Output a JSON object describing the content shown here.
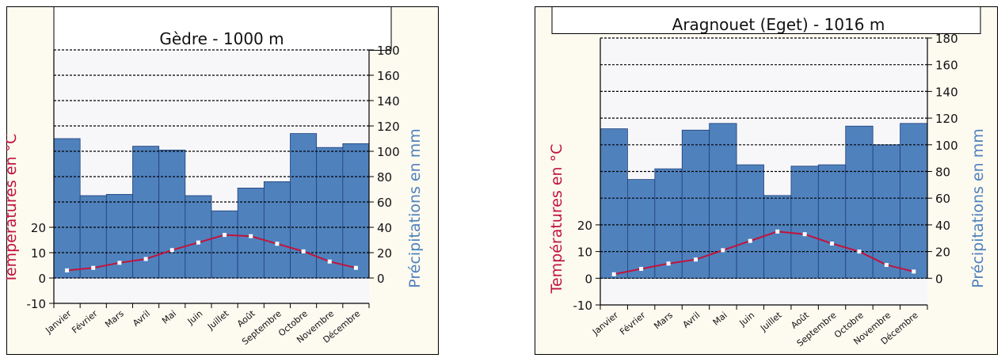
{
  "chart_data": [
    {
      "type": "bar",
      "title": "Gèdre - 1000 m",
      "categories": [
        "Janvier",
        "Février",
        "Mars",
        "Avril",
        "Mai",
        "Juin",
        "Juillet",
        "Août",
        "Septembre",
        "Octobre",
        "Novembre",
        "Décembre"
      ],
      "series": [
        {
          "name": "Précipitations en mm",
          "type": "bar",
          "axis": "right",
          "values": [
            110,
            65,
            66,
            104,
            101,
            65,
            53,
            71,
            76,
            114,
            103,
            106
          ]
        },
        {
          "name": "Températures en °C",
          "type": "line",
          "axis": "left",
          "values": [
            3.0,
            4.0,
            6.0,
            7.5,
            11.0,
            14.0,
            17.0,
            16.5,
            13.5,
            10.5,
            6.5,
            4.0
          ]
        }
      ],
      "y_left": {
        "label": "Températures en °C",
        "ticks": [
          -10,
          0,
          10,
          20
        ],
        "ylim": [
          -10,
          20
        ]
      },
      "y_right": {
        "label": "Précipitations en mm",
        "ticks": [
          0,
          20,
          40,
          60,
          80,
          100,
          120,
          140,
          160,
          180
        ],
        "ylim": [
          0,
          180
        ]
      },
      "colors": {
        "bars": "#4f81bd",
        "bar_edge": "#1f3f78",
        "line": "#c0143c",
        "markers": "#ffffff",
        "plot_bg": "#f7f7fa",
        "frame_bg": "#fdfaf0",
        "temp_label": "#c0143c",
        "precip_label": "#4f81bd"
      },
      "grid": "dashed horizontal"
    },
    {
      "type": "bar",
      "title": "Aragnouet (Eget) - 1016 m",
      "categories": [
        "Janvier",
        "Février",
        "Mars",
        "Avril",
        "Mai",
        "Juin",
        "Juillet",
        "Août",
        "Septembre",
        "Octobre",
        "Novembre",
        "Décembre"
      ],
      "series": [
        {
          "name": "Précipitations en mm",
          "type": "bar",
          "axis": "right",
          "values": [
            112,
            74,
            82,
            111,
            116,
            85,
            62,
            84,
            85,
            114,
            100,
            116
          ]
        },
        {
          "name": "Températures en °C",
          "type": "line",
          "axis": "left",
          "values": [
            1.5,
            3.5,
            5.5,
            7.0,
            10.5,
            14.0,
            17.5,
            16.5,
            13.0,
            10.0,
            5.0,
            2.5
          ]
        }
      ],
      "y_left": {
        "label": "Températures en °C",
        "ticks": [
          -10,
          0,
          10,
          20
        ],
        "ylim": [
          -10,
          20
        ]
      },
      "y_right": {
        "label": "Précipitations en mm",
        "ticks": [
          0,
          20,
          40,
          60,
          80,
          100,
          120,
          140,
          160,
          180
        ],
        "ylim": [
          0,
          180
        ]
      },
      "colors": {
        "bars": "#4f81bd",
        "bar_edge": "#1f3f78",
        "line": "#c0143c",
        "markers": "#ffffff",
        "plot_bg": "#f7f7fa",
        "frame_bg": "#fdfaf0",
        "temp_label": "#c0143c",
        "precip_label": "#4f81bd"
      },
      "grid": "dashed horizontal"
    }
  ]
}
